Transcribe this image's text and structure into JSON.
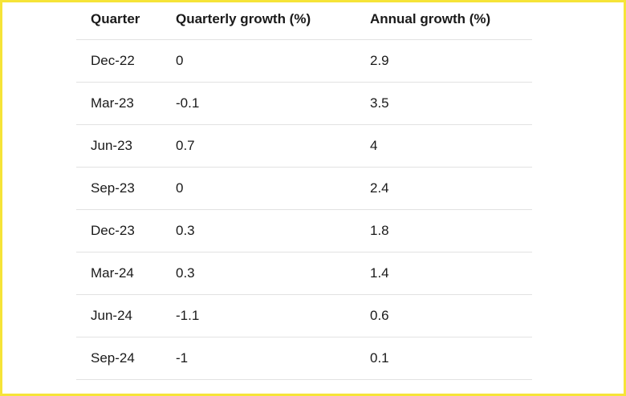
{
  "colors": {
    "page_border": "#f6e438",
    "background": "#ffffff",
    "row_divider": "#e2e2e2",
    "text": "#1a1a1a"
  },
  "chart_data": {
    "type": "table",
    "title": "",
    "columns": [
      "Quarter",
      "Quarterly growth (%)",
      "Annual growth (%)"
    ],
    "rows": [
      [
        "Dec-22",
        "0",
        "2.9"
      ],
      [
        "Mar-23",
        "-0.1",
        "3.5"
      ],
      [
        "Jun-23",
        "0.7",
        "4"
      ],
      [
        "Sep-23",
        "0",
        "2.4"
      ],
      [
        "Dec-23",
        "0.3",
        "1.8"
      ],
      [
        "Mar-24",
        "0.3",
        "1.4"
      ],
      [
        "Jun-24",
        "-1.1",
        "0.6"
      ],
      [
        "Sep-24",
        "-1",
        "0.1"
      ]
    ]
  }
}
